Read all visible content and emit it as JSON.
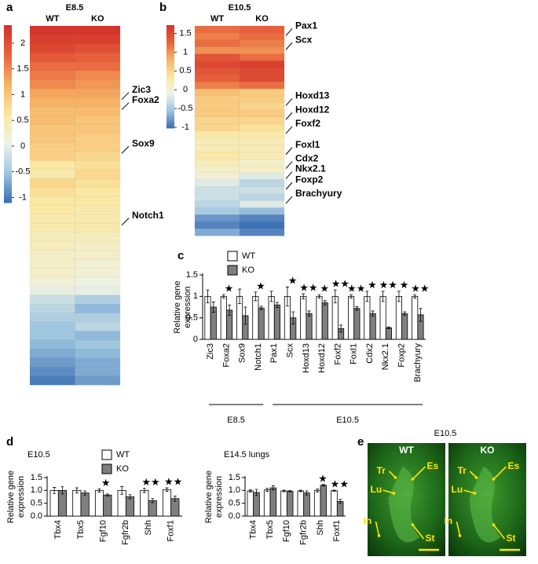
{
  "chart_data": [
    {
      "type": "heatmap",
      "panel": "a",
      "title": "E8.5",
      "series": [
        {
          "name": "WT",
          "values": [
            2.3,
            2.2,
            2.1,
            1.9,
            1.7,
            1.6,
            1.5,
            1.3,
            1.2,
            1.1,
            1.1,
            1.0,
            1.0,
            0.9,
            0.9,
            0.6,
            0.5,
            0.8,
            0.7,
            0.6,
            0.6,
            0.5,
            0.5,
            0.4,
            0.4,
            0.3,
            0.3,
            0.3,
            0.2,
            0.0,
            -0.2,
            -0.3,
            -0.4,
            -0.5,
            -0.5,
            -0.6,
            -0.7,
            -0.8,
            -0.9,
            -1.0
          ]
        },
        {
          "name": "KO",
          "values": [
            2.3,
            2.2,
            2.0,
            1.8,
            1.7,
            1.5,
            1.4,
            1.3,
            1.2,
            1.1,
            1.0,
            1.0,
            0.9,
            0.9,
            0.8,
            0.7,
            0.8,
            0.7,
            0.6,
            0.6,
            0.5,
            0.5,
            0.5,
            0.4,
            0.3,
            0.3,
            0.2,
            0.2,
            0.1,
            0.0,
            -0.4,
            -0.6,
            -0.4,
            -0.3,
            -0.6,
            -0.5,
            -0.6,
            -0.7,
            -0.7,
            -0.8
          ]
        }
      ],
      "categories": [
        null,
        null,
        null,
        null,
        null,
        null,
        null,
        "Zic3",
        "Foxa2",
        null,
        null,
        null,
        null,
        "Sox9",
        null,
        null,
        null,
        null,
        null,
        null,
        null,
        "Notch1",
        null,
        null,
        null,
        null,
        null,
        null,
        null,
        null,
        null,
        null,
        null,
        null,
        null,
        null,
        null,
        null,
        null,
        null
      ],
      "highlight": [
        "Foxa2"
      ],
      "highlight_color": "#e0202a",
      "clim": [
        -1.1,
        2.35
      ],
      "cticks": [
        -1,
        -0.5,
        0,
        0.5,
        1,
        1.5,
        2
      ],
      "colors": [
        "#3a6db3",
        "#9ec5e0",
        "#eef3e6",
        "#fbe7a0",
        "#f6b365",
        "#e8623c",
        "#d3322a"
      ]
    },
    {
      "type": "heatmap",
      "panel": "b",
      "title": "E10.5",
      "series": [
        {
          "name": "WT",
          "values": [
            1.2,
            1.1,
            1.2,
            1.0,
            1.4,
            1.5,
            1.4,
            1.3,
            1.1,
            0.7,
            0.6,
            0.6,
            0.6,
            0.5,
            0.5,
            0.3,
            0.2,
            0.2,
            0.3,
            0.2,
            0.1,
            0.0,
            -0.2,
            -0.3,
            -0.3,
            -0.4,
            -0.5,
            -0.8,
            -0.9,
            -0.7
          ]
        },
        {
          "name": "KO",
          "values": [
            1.3,
            1.2,
            1.1,
            1.0,
            1.2,
            1.6,
            1.5,
            1.5,
            1.2,
            0.6,
            0.6,
            0.5,
            0.6,
            0.5,
            0.4,
            0.3,
            0.2,
            0.2,
            0.2,
            0.1,
            0.1,
            -0.2,
            -0.4,
            -0.3,
            -0.4,
            -0.2,
            -0.6,
            -0.9,
            -1.0,
            -0.9
          ]
        }
      ],
      "categories": [
        "Pax1",
        null,
        "Scx",
        null,
        null,
        null,
        null,
        null,
        null,
        null,
        "Hoxd13",
        null,
        "Hoxd12",
        null,
        "Foxf2",
        null,
        null,
        "Foxl1",
        null,
        "Cdx2",
        "Nkx2.1",
        null,
        "Foxp2",
        null,
        "Brachyury",
        null,
        null,
        null,
        null,
        null
      ],
      "highlight": [
        "Foxf2",
        "Foxl1",
        "Foxp2"
      ],
      "highlight_color": "#e0202a",
      "clim": [
        -1.02,
        1.72
      ],
      "cticks": [
        -1,
        -0.5,
        0,
        0.5,
        1,
        1.5
      ],
      "colors": [
        "#3a6db3",
        "#9ec5e0",
        "#eef3e6",
        "#fbe7a0",
        "#f6b365",
        "#e8623c",
        "#d3322a"
      ]
    },
    {
      "type": "bar",
      "panel": "c",
      "ylabel": [
        "Relative gene",
        "expression"
      ],
      "categories": [
        "Zic3",
        "Foxa2",
        "Sox9",
        "Notch1",
        "Pax1",
        "Scx",
        "Hoxd13",
        "Hoxd12",
        "Foxf2",
        "Foxl1",
        "Cdx2",
        "Nkx2.1",
        "Foxp2",
        "Brachyury"
      ],
      "category_groups": [
        "E8.5",
        "E8.5",
        "E8.5",
        "E8.5",
        "E10.5",
        "E10.5",
        "E10.5",
        "E10.5",
        "E10.5",
        "E10.5",
        "E10.5",
        "E10.5",
        "E10.5",
        "E10.5"
      ],
      "series": [
        {
          "name": "WT",
          "color": "#ffffff",
          "values": [
            1,
            1,
            1,
            1,
            1,
            1,
            1,
            1,
            1,
            1,
            1,
            1,
            1,
            1
          ],
          "errors": [
            0.15,
            0.04,
            0.17,
            0.1,
            0.12,
            0.22,
            0.06,
            0.04,
            0.15,
            0.04,
            0.12,
            0.12,
            0.12,
            0.04
          ]
        },
        {
          "name": "KO",
          "color": "#7f7f7f",
          "values": [
            0.75,
            0.68,
            0.55,
            0.73,
            0.8,
            0.5,
            0.6,
            0.85,
            0.25,
            0.72,
            0.6,
            0.27,
            0.6,
            0.57
          ],
          "errors": [
            0.12,
            0.12,
            0.2,
            0.04,
            0.06,
            0.14,
            0.06,
            0.05,
            0.08,
            0.04,
            0.06,
            0.02,
            0.04,
            0.15
          ]
        }
      ],
      "significance": [
        null,
        "★",
        null,
        "★",
        null,
        "★",
        "★★",
        "★",
        "★★",
        "★★",
        "★",
        "★★",
        "★",
        "★★"
      ],
      "ylim": [
        0,
        1.5
      ],
      "yticks": [
        0,
        0.5,
        1,
        1.5
      ],
      "legend": true
    },
    {
      "type": "bar",
      "panel": "d",
      "title": "E10.5",
      "ylabel": [
        "Relative gene",
        "expression"
      ],
      "categories": [
        "Tbx4",
        "Tbx5",
        "Fgf10",
        "Fgfr2b",
        "Shh",
        "Foxf1"
      ],
      "series": [
        {
          "name": "WT",
          "color": "#ffffff",
          "values": [
            1.0,
            1.0,
            1.0,
            1.0,
            1.0,
            1.03
          ],
          "errors": [
            0.12,
            0.1,
            0.06,
            0.15,
            0.08,
            0.07
          ]
        },
        {
          "name": "KO",
          "color": "#7f7f7f",
          "values": [
            1.0,
            0.9,
            0.82,
            0.75,
            0.6,
            0.68
          ],
          "errors": [
            0.14,
            0.08,
            0.04,
            0.08,
            0.08,
            0.1
          ]
        }
      ],
      "significance": [
        null,
        null,
        "★",
        null,
        "★★",
        "★★"
      ],
      "ylim": [
        0,
        1.5
      ],
      "yticks": [
        {
          "value": 0,
          "label": "0.0"
        },
        0.5,
        {
          "value": 1,
          "label": "1.0"
        },
        1.5
      ],
      "legend": true
    },
    {
      "type": "bar",
      "title": "E14.5 lungs",
      "ylabel": [
        "Relative gene",
        "expression"
      ],
      "categories": [
        "Tbx4",
        "Tbx5",
        "Fgf10",
        "Fgfr2b",
        "Shh",
        "Foxf1"
      ],
      "series": [
        {
          "name": "WT",
          "color": "#ffffff",
          "values": [
            0.98,
            1.02,
            0.98,
            0.98,
            1.0,
            0.99
          ],
          "errors": [
            0.04,
            0.06,
            0.03,
            0.03,
            0.06,
            0.02
          ]
        },
        {
          "name": "KO",
          "color": "#7f7f7f",
          "values": [
            0.92,
            1.1,
            0.97,
            0.9,
            1.2,
            0.57
          ],
          "errors": [
            0.12,
            0.08,
            0.02,
            0.08,
            0.03,
            0.08
          ]
        }
      ],
      "significance": [
        null,
        null,
        null,
        null,
        "★",
        "★★"
      ],
      "ylim": [
        0,
        1.5
      ],
      "yticks": [
        {
          "value": 0,
          "label": "0.0"
        },
        0.5,
        {
          "value": 1,
          "label": "1.0"
        },
        1.5
      ],
      "legend": false
    }
  ],
  "panel_e": {
    "panel": "e",
    "title": "E10.5",
    "images": [
      {
        "label": "WT",
        "annotations": [
          "Tr",
          "Es",
          "Lu",
          "In",
          "St"
        ]
      },
      {
        "label": "KO",
        "annotations": [
          "Tr",
          "Es",
          "Lu",
          "In",
          "St"
        ]
      }
    ]
  }
}
